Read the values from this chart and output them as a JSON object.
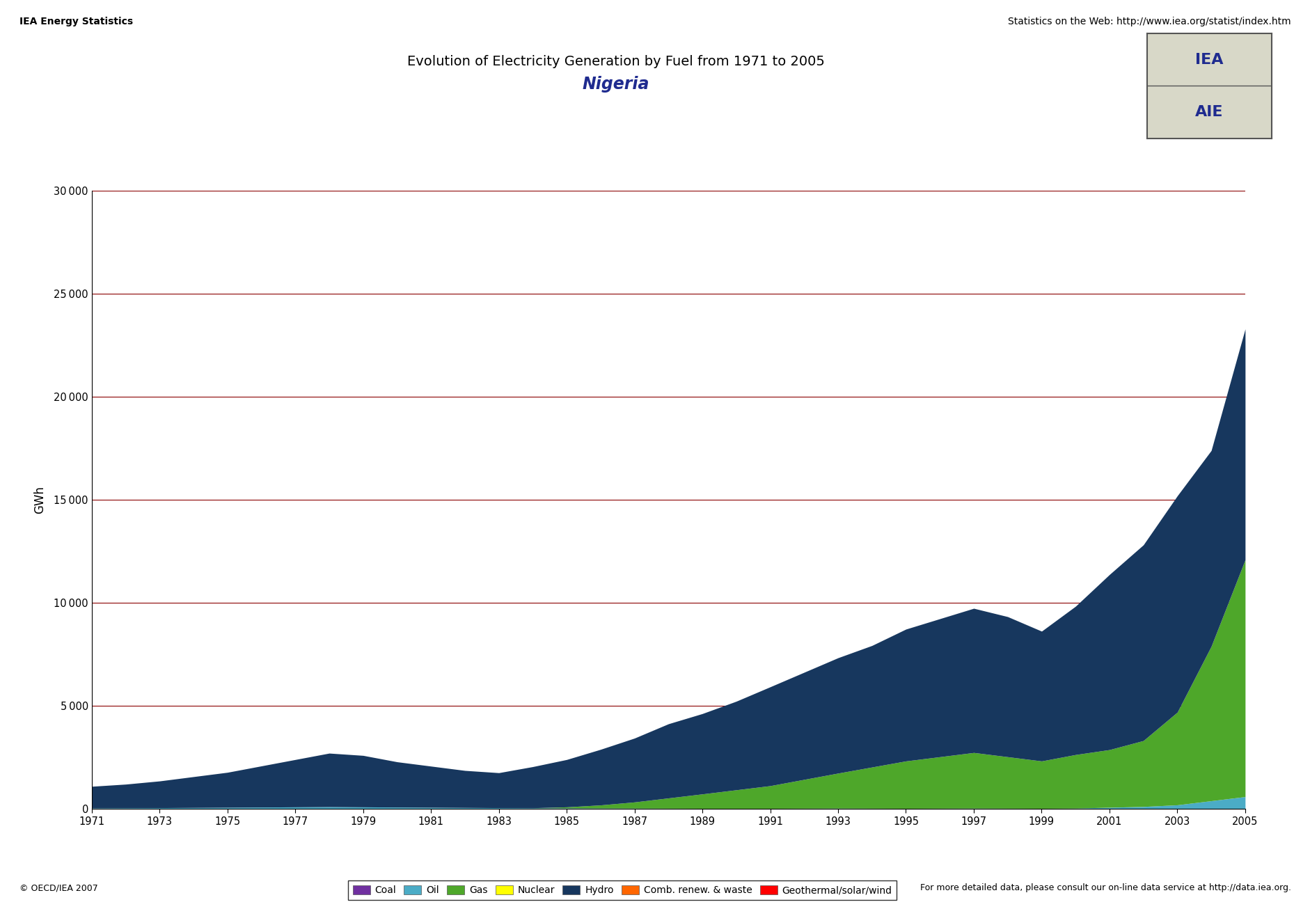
{
  "title": "Evolution of Electricity Generation by Fuel from 1971 to 2005",
  "subtitle": "Nigeria",
  "ylabel": "GWh",
  "top_left_text": "IEA Energy Statistics",
  "top_right_text": "Statistics on the Web: http://www.iea.org/statist/index.htm",
  "bottom_left_text": "© OECD/IEA 2007",
  "bottom_right_text": "For more detailed data, please consult our on-line data service at http://data.iea.org.",
  "years": [
    1971,
    1972,
    1973,
    1974,
    1975,
    1976,
    1977,
    1978,
    1979,
    1980,
    1981,
    1982,
    1983,
    1984,
    1985,
    1986,
    1987,
    1988,
    1989,
    1990,
    1991,
    1992,
    1993,
    1994,
    1995,
    1996,
    1997,
    1998,
    1999,
    2000,
    2001,
    2002,
    2003,
    2004,
    2005
  ],
  "coal": [
    0,
    0,
    0,
    0,
    0,
    0,
    0,
    0,
    0,
    0,
    0,
    0,
    0,
    0,
    0,
    0,
    0,
    0,
    0,
    0,
    0,
    0,
    0,
    0,
    0,
    0,
    0,
    0,
    0,
    0,
    0,
    0,
    0,
    0,
    0
  ],
  "oil": [
    50,
    55,
    60,
    70,
    80,
    90,
    100,
    110,
    100,
    90,
    80,
    70,
    60,
    55,
    50,
    45,
    40,
    35,
    30,
    30,
    30,
    35,
    40,
    35,
    30,
    35,
    40,
    35,
    30,
    40,
    80,
    120,
    200,
    400,
    600
  ],
  "gas": [
    0,
    0,
    0,
    0,
    0,
    0,
    0,
    0,
    0,
    0,
    0,
    0,
    0,
    0,
    50,
    150,
    300,
    500,
    700,
    900,
    1100,
    1400,
    1700,
    2000,
    2300,
    2500,
    2700,
    2500,
    2300,
    2600,
    2800,
    3200,
    4500,
    7500,
    11500
  ],
  "nuclear": [
    0,
    0,
    0,
    0,
    0,
    0,
    0,
    0,
    0,
    0,
    0,
    0,
    0,
    0,
    0,
    0,
    0,
    0,
    0,
    0,
    0,
    0,
    0,
    0,
    0,
    0,
    0,
    0,
    0,
    0,
    0,
    0,
    0,
    0,
    0
  ],
  "hydro": [
    1050,
    1150,
    1300,
    1500,
    1700,
    2000,
    2300,
    2600,
    2500,
    2200,
    2000,
    1800,
    1700,
    2000,
    2300,
    2700,
    3100,
    3600,
    3900,
    4300,
    4800,
    5200,
    5600,
    5900,
    6400,
    6700,
    7000,
    6800,
    6300,
    7200,
    8500,
    9500,
    10500,
    9500,
    11200
  ],
  "comb_renew": [
    0,
    0,
    0,
    0,
    0,
    0,
    0,
    0,
    0,
    0,
    0,
    0,
    0,
    0,
    0,
    0,
    0,
    0,
    0,
    0,
    0,
    0,
    0,
    0,
    0,
    0,
    0,
    0,
    0,
    0,
    0,
    0,
    0,
    0,
    0
  ],
  "geo_solar": [
    0,
    0,
    0,
    0,
    0,
    0,
    0,
    0,
    0,
    0,
    0,
    0,
    0,
    0,
    0,
    0,
    0,
    0,
    0,
    0,
    0,
    0,
    0,
    0,
    0,
    0,
    0,
    0,
    0,
    0,
    0,
    0,
    0,
    0,
    0
  ],
  "colors": {
    "coal": "#7030A0",
    "oil": "#4BACC6",
    "gas": "#4EA72A",
    "nuclear": "#FFFF00",
    "hydro": "#17375E",
    "comb_renew": "#FF6600",
    "geo_solar": "#FF0000"
  },
  "grid_color": "#8B0000",
  "ylim": [
    0,
    30000
  ],
  "yticks": [
    0,
    5000,
    10000,
    15000,
    20000,
    25000,
    30000
  ]
}
